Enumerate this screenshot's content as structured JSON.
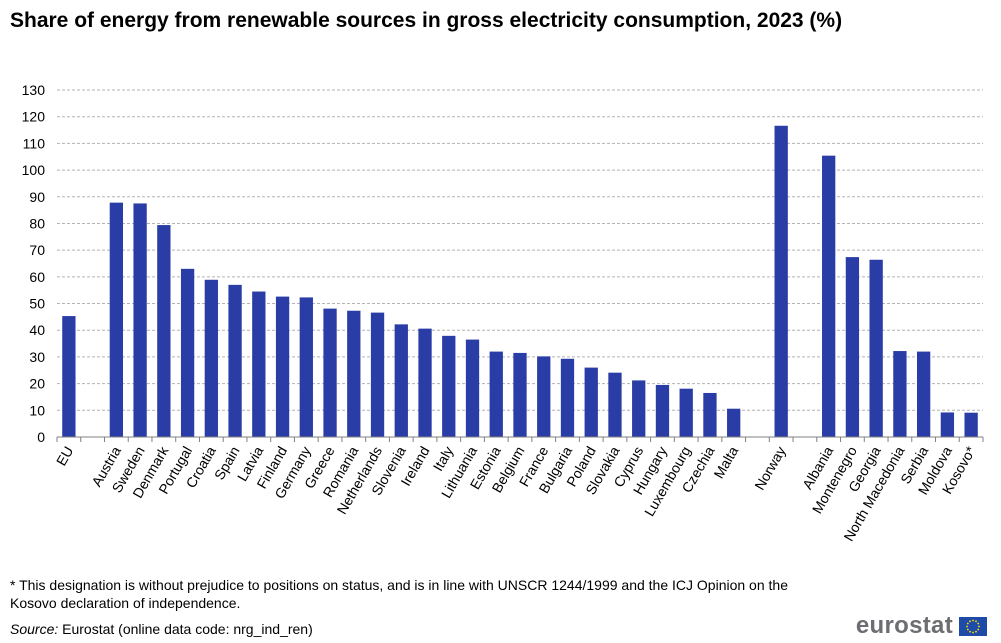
{
  "title": "Share of energy from renewable sources in gross electricity consumption, 2023 (%)",
  "footnote": "* This designation is without prejudice to positions on status, and is in line with UNSCR 1244/1999 and the ICJ Opinion on the Kosovo declaration of independence.",
  "source": {
    "label": "Source:",
    "text": " Eurostat (online data code: nrg_ind_ren)"
  },
  "logo": {
    "text": "eurostat",
    "flag_icon": "eu-flag-icon"
  },
  "colors": {
    "bar": "#2a3da6",
    "grid": "#b3b3b3",
    "axis": "#808080"
  },
  "chart_data": {
    "type": "bar",
    "title": "Share of energy from renewable sources in gross electricity consumption, 2023 (%)",
    "xlabel": "",
    "ylabel": "",
    "ylim": [
      0,
      130
    ],
    "yticks": [
      0,
      10,
      20,
      30,
      40,
      50,
      60,
      70,
      80,
      90,
      100,
      110,
      120,
      130
    ],
    "grid": true,
    "legend": "none",
    "categories": [
      "EU",
      "",
      "Austria",
      "Sweden",
      "Denmark",
      "Portugal",
      "Croatia",
      "Spain",
      "Latvia",
      "Finland",
      "Germany",
      "Greece",
      "Romania",
      "Netherlands",
      "Slovenia",
      "Ireland",
      "Italy",
      "Lithuania",
      "Estonia",
      "Belgium",
      "France",
      "Bulgaria",
      "Poland",
      "Slovakia",
      "Cyprus",
      "Hungary",
      "Luxembourg",
      "Czechia",
      "Malta",
      "",
      "Norway",
      "",
      "Albania",
      "Montenegro",
      "Georgia",
      "North Macedonia",
      "Serbia",
      "Moldova",
      "Kosovo*"
    ],
    "values": [
      45.3,
      null,
      87.8,
      87.5,
      79.4,
      63.0,
      58.9,
      57.0,
      54.5,
      52.6,
      52.3,
      48.1,
      47.3,
      46.6,
      42.2,
      40.6,
      37.9,
      36.5,
      32.0,
      31.5,
      30.2,
      29.3,
      26.0,
      24.1,
      21.2,
      19.5,
      18.1,
      16.5,
      10.6,
      null,
      116.6,
      null,
      105.4,
      67.4,
      66.4,
      32.2,
      32.0,
      9.2,
      9.1
    ]
  }
}
